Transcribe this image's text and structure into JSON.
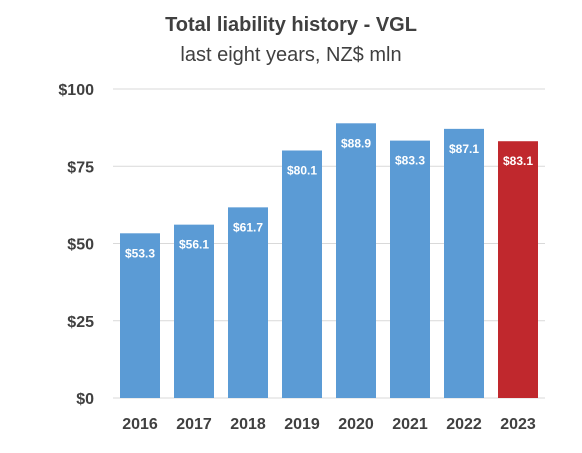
{
  "chart_data": {
    "type": "bar",
    "title": "Total liability history - VGL",
    "subtitle": "last eight years, NZ$ mln",
    "categories": [
      "2016",
      "2017",
      "2018",
      "2019",
      "2020",
      "2021",
      "2022",
      "2023"
    ],
    "values": [
      53.3,
      56.1,
      61.7,
      80.1,
      88.9,
      83.3,
      87.1,
      83.1
    ],
    "data_labels": [
      "$53.3",
      "$56.1",
      "$61.7",
      "$80.1",
      "$88.9",
      "$83.3",
      "$87.1",
      "$83.1"
    ],
    "ylim": [
      0,
      100
    ],
    "yticks": [
      0,
      25,
      50,
      75,
      100
    ],
    "ytick_labels": [
      "$0",
      "$25",
      "$50",
      "$75",
      "$100"
    ],
    "grid": true,
    "colors": {
      "bar": "#5b9bd5",
      "highlight_bar": "#c0282d",
      "grid": "#d9d9d9",
      "text": "#404040"
    },
    "highlight_category": "2023"
  }
}
